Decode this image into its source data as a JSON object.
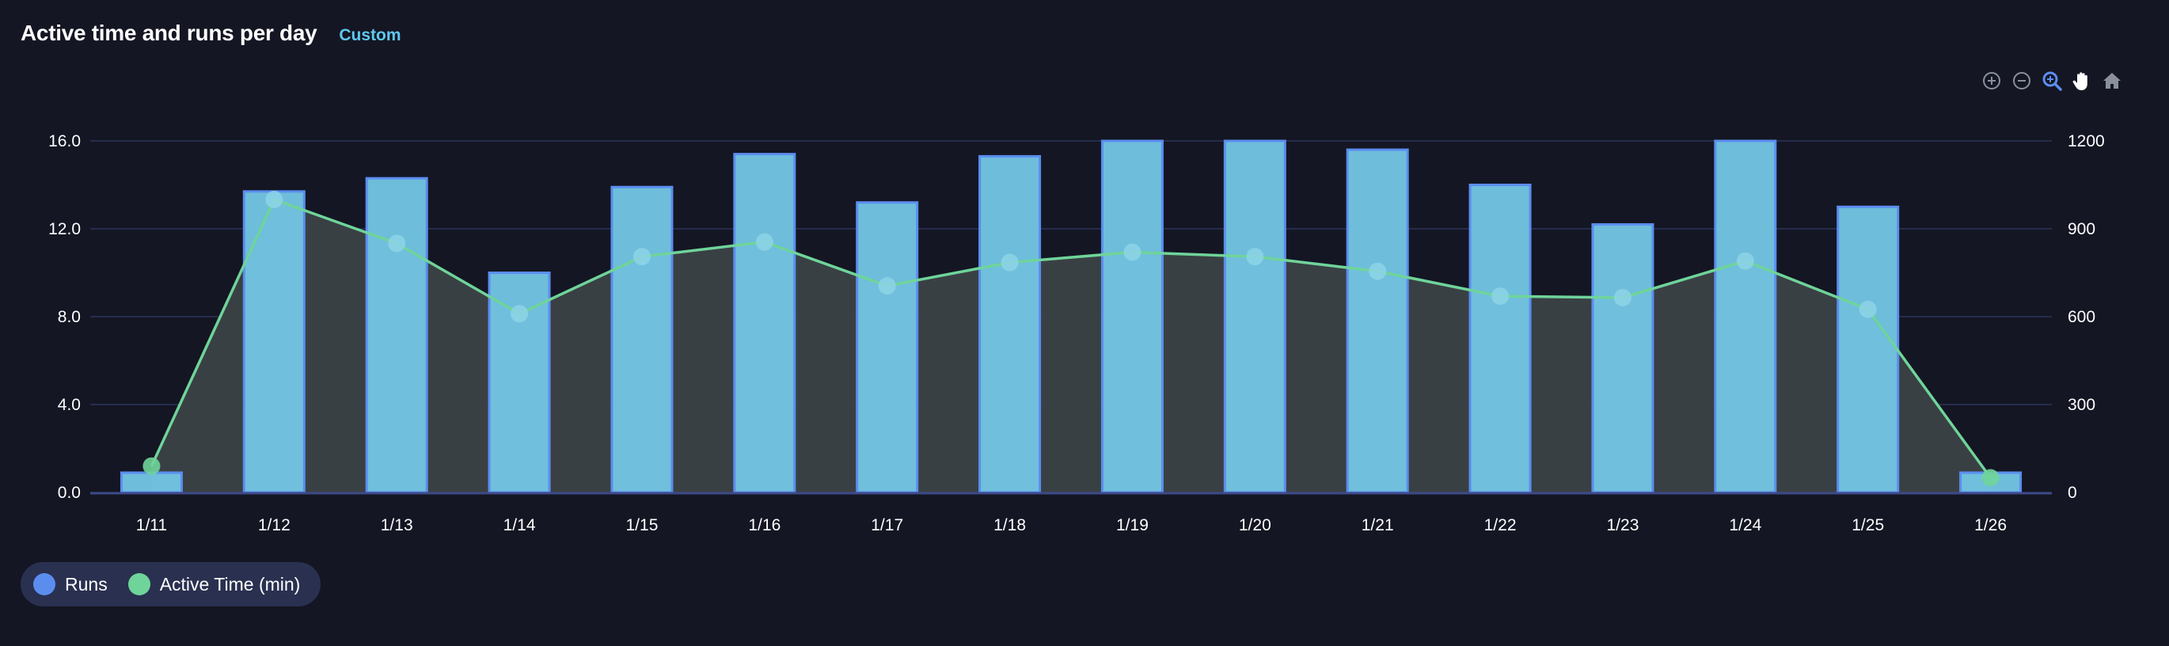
{
  "header": {
    "title": "Active time and runs per day",
    "badge": "Custom"
  },
  "toolbar": [
    {
      "name": "zoom-in-icon",
      "color": "#8a8f9e"
    },
    {
      "name": "zoom-out-icon",
      "color": "#8a8f9e"
    },
    {
      "name": "zoom-select-icon",
      "color": "#5b8def"
    },
    {
      "name": "pan-hand-icon",
      "color": "#ffffff"
    },
    {
      "name": "home-reset-icon",
      "color": "#8a8f9e"
    }
  ],
  "legend": [
    {
      "label": "Runs",
      "color": "#5b8def"
    },
    {
      "label": "Active Time (min)",
      "color": "#6fd49a"
    }
  ],
  "chart_data": {
    "type": "bar",
    "categories": [
      "1/11",
      "1/12",
      "1/13",
      "1/14",
      "1/15",
      "1/16",
      "1/17",
      "1/18",
      "1/19",
      "1/20",
      "1/21",
      "1/22",
      "1/23",
      "1/24",
      "1/25",
      "1/26"
    ],
    "series": [
      {
        "name": "Runs",
        "type": "bar",
        "axis": "left",
        "values": [
          0.9,
          13.7,
          14.3,
          10,
          13.9,
          15.4,
          13.2,
          15.3,
          16,
          16,
          15.6,
          14,
          12.2,
          16,
          13,
          0.9
        ]
      },
      {
        "name": "Active Time (min)",
        "type": "area-line",
        "axis": "right",
        "values": [
          90,
          1000,
          850,
          610,
          805,
          855,
          705,
          785,
          820,
          805,
          755,
          670,
          665,
          790,
          625,
          50
        ]
      }
    ],
    "y_left": {
      "ticks": [
        "0.0",
        "4.0",
        "8.0",
        "12.0",
        "16.0"
      ],
      "range": [
        0,
        16
      ]
    },
    "y_right": {
      "ticks": [
        "0",
        "300",
        "600",
        "900",
        "1200"
      ],
      "range": [
        0,
        1200
      ]
    },
    "grid": true,
    "legend_position": "bottom-left",
    "colors": {
      "bar_fill": "#72c5e3",
      "bar_stroke": "#5b8def",
      "line": "#6fd49a",
      "area": "#3b4247",
      "grid": "#2c3458",
      "axis": "#3d4a8a"
    }
  }
}
